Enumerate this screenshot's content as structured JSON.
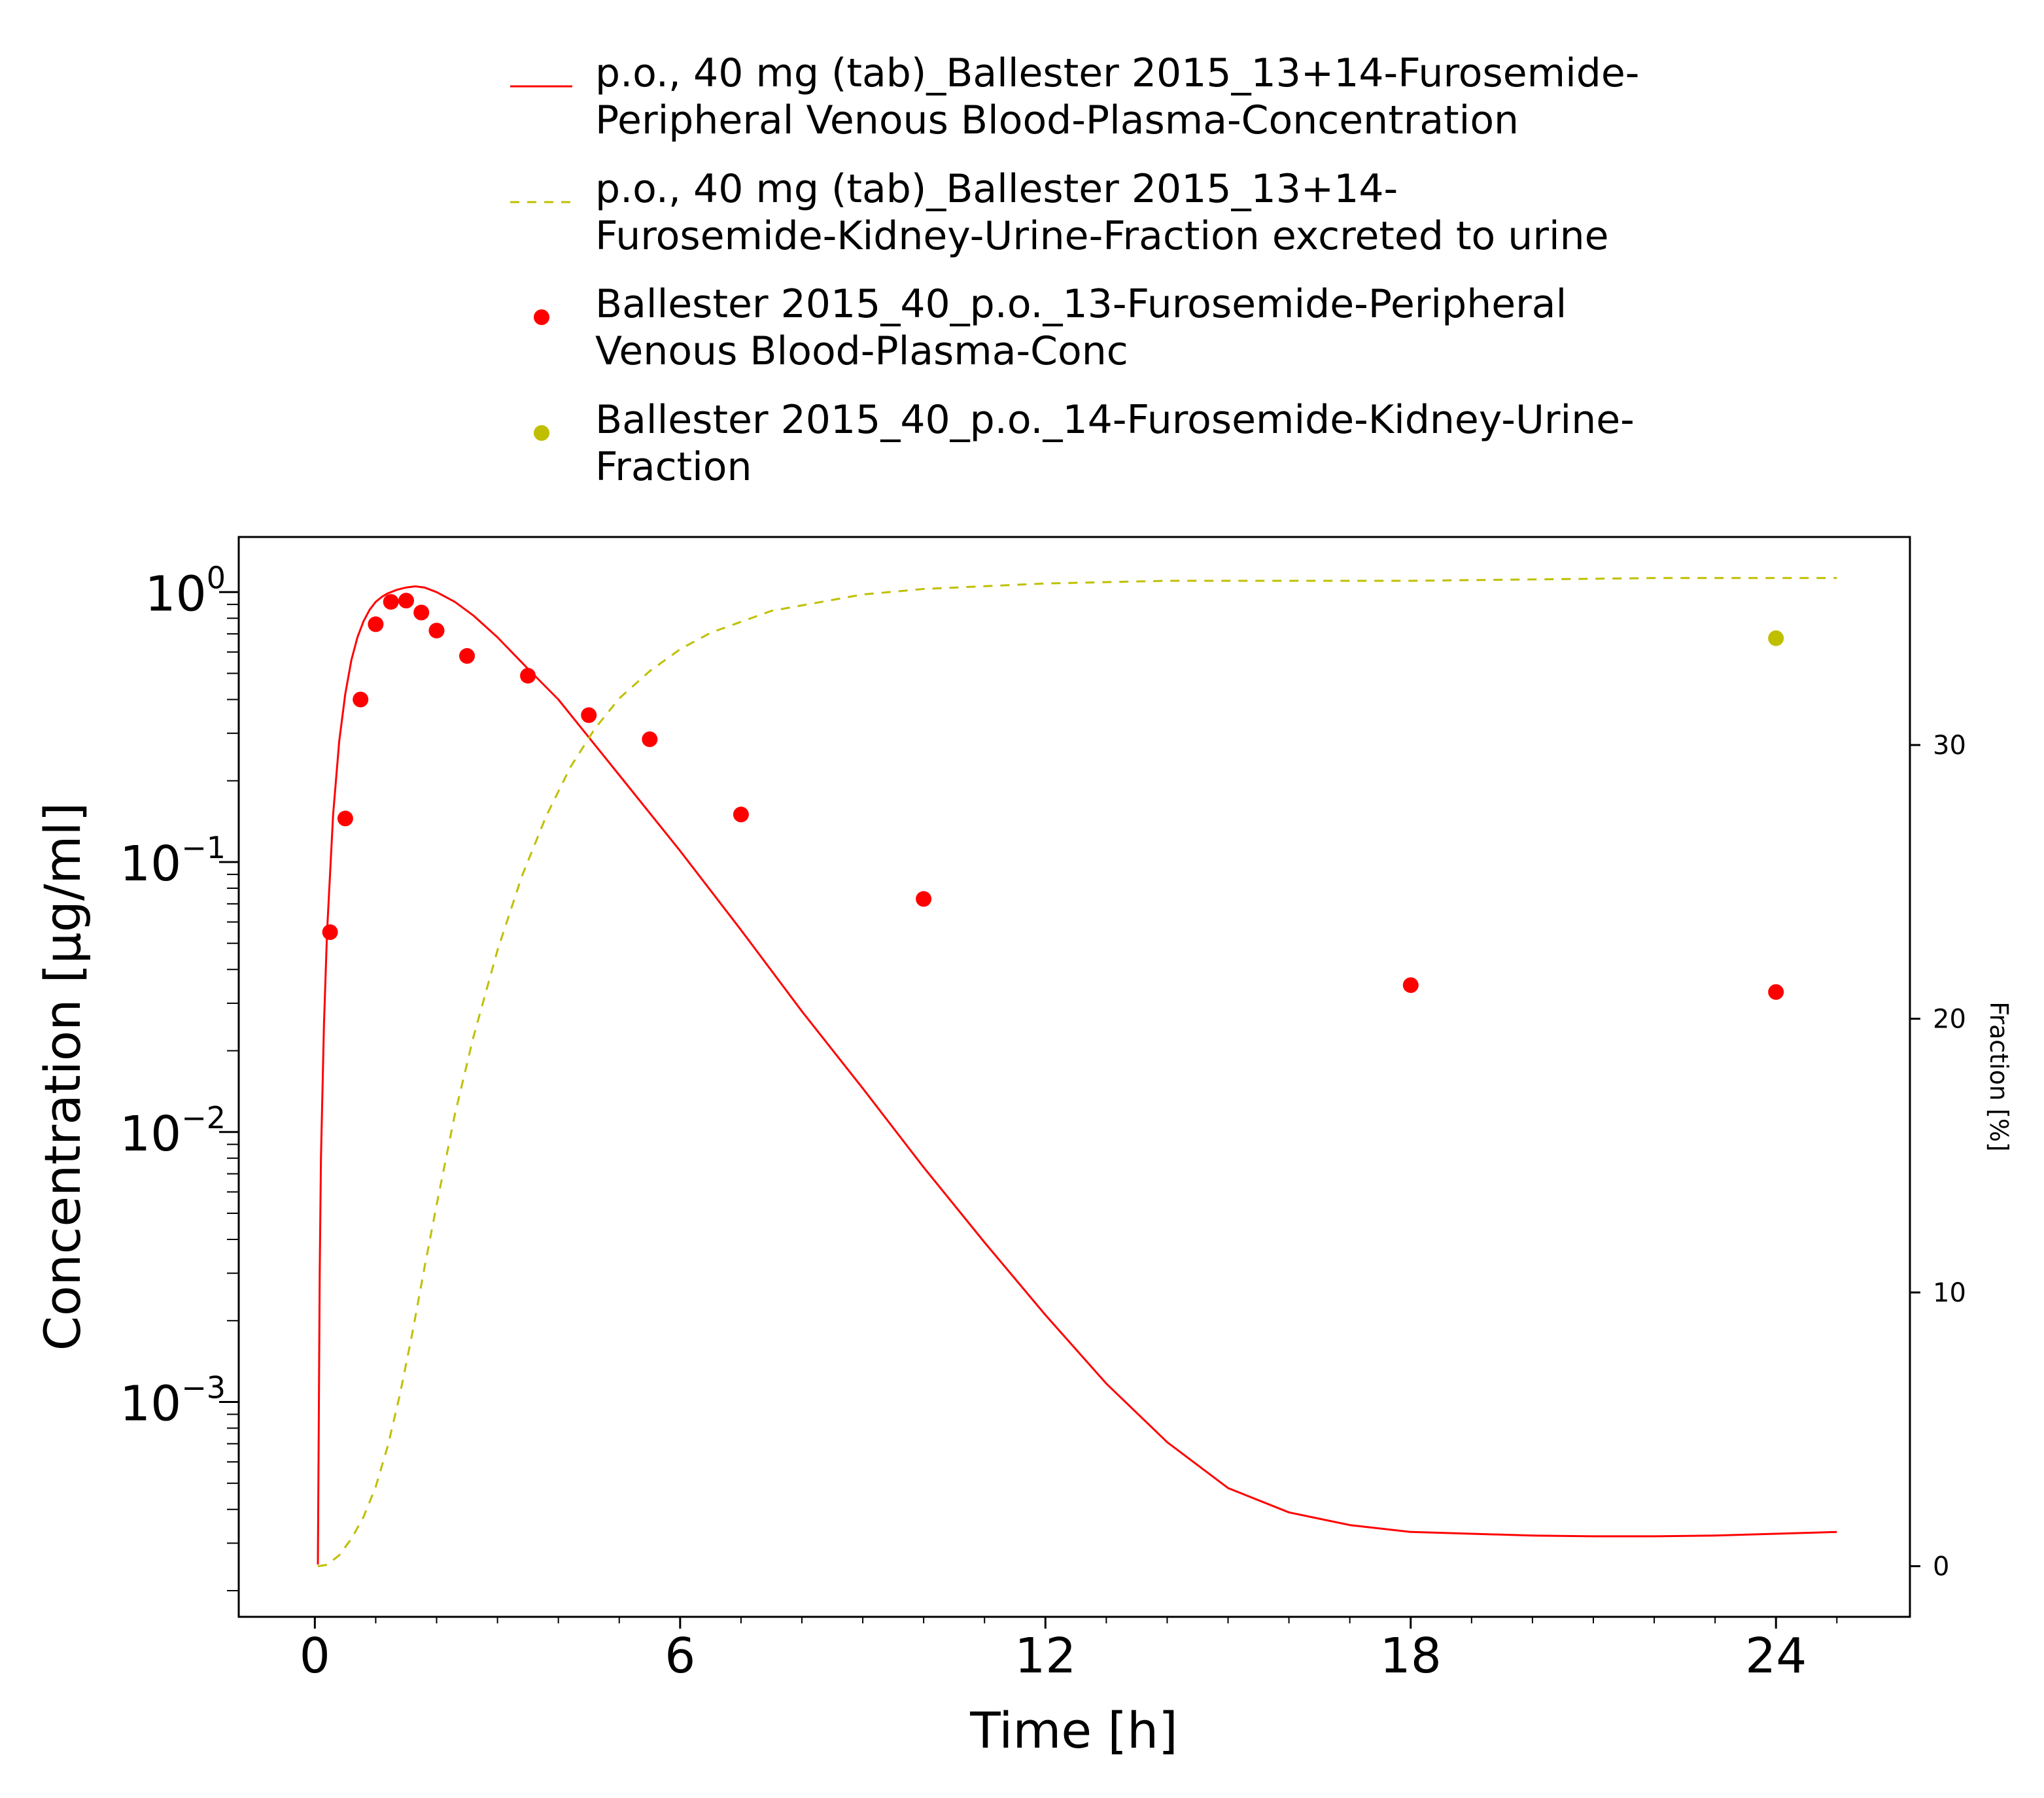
{
  "colors": {
    "red": "#ff0000",
    "olive": "#bfbf00",
    "axis": "#000000"
  },
  "legend": [
    {
      "marker": "line",
      "color": "red",
      "lines": [
        "p.o., 40 mg (tab)_Ballester 2015_13+14-Furosemide-",
        "Peripheral Venous Blood-Plasma-Concentration"
      ]
    },
    {
      "marker": "dashed-line",
      "color": "olive",
      "lines": [
        "p.o., 40 mg (tab)_Ballester 2015_13+14-",
        "Furosemide-Kidney-Urine-Fraction excreted to urine"
      ]
    },
    {
      "marker": "dot",
      "color": "red",
      "lines": [
        "Ballester 2015_40_p.o._13-Furosemide-Peripheral",
        "Venous Blood-Plasma-Conc"
      ]
    },
    {
      "marker": "dot",
      "color": "olive",
      "lines": [
        "Ballester 2015_40_p.o._14-Furosemide-Kidney-Urine-",
        "Fraction"
      ]
    }
  ],
  "chart_data": {
    "type": "line",
    "xlabel": "Time [h]",
    "ylabel": "Concentration [µg/ml]",
    "y2label": "Fraction [%]",
    "xlim": [
      -1.25,
      26.2
    ],
    "ylim": [
      0.00016,
      1.6
    ],
    "yscale": "log",
    "y2lim": [
      -1.85,
      37.6
    ],
    "xticks": [
      0,
      6,
      12,
      18,
      24
    ],
    "xtick_labels": [
      "0",
      "6",
      "12",
      "18",
      "24"
    ],
    "yticks": [
      1,
      0.1,
      0.01,
      0.001
    ],
    "ytick_labels": [
      {
        "base": "10",
        "exp": "0"
      },
      {
        "base": "10",
        "exp": "−1"
      },
      {
        "base": "10",
        "exp": "−2"
      },
      {
        "base": "10",
        "exp": "−3"
      }
    ],
    "y2ticks": [
      0,
      10,
      20,
      30
    ],
    "y2tick_labels": [
      "0",
      "10",
      "20",
      "30"
    ],
    "grid": false,
    "legend_position": "top",
    "series": [
      {
        "kind": "line",
        "axis": "left",
        "color": "red",
        "x": [
          0.05,
          0.08,
          0.1,
          0.15,
          0.2,
          0.3,
          0.4,
          0.5,
          0.6,
          0.7,
          0.8,
          0.9,
          1.0,
          1.1,
          1.2,
          1.35,
          1.5,
          1.65,
          1.8,
          2.0,
          2.3,
          2.6,
          3.0,
          3.5,
          4.0,
          5.0,
          6.0,
          7.0,
          8.0,
          9.0,
          10.0,
          11.0,
          12.0,
          13.0,
          14.0,
          15.0,
          16.0,
          17.0,
          18.0,
          19.0,
          20.0,
          21.0,
          22.0,
          23.0,
          24.0,
          25.0
        ],
        "y": [
          0.00025,
          0.003,
          0.008,
          0.025,
          0.055,
          0.15,
          0.28,
          0.42,
          0.56,
          0.68,
          0.78,
          0.86,
          0.92,
          0.96,
          0.99,
          1.02,
          1.04,
          1.05,
          1.04,
          1.0,
          0.92,
          0.82,
          0.68,
          0.52,
          0.4,
          0.21,
          0.11,
          0.056,
          0.028,
          0.0145,
          0.0074,
          0.0039,
          0.0021,
          0.00117,
          0.00071,
          0.00048,
          0.00039,
          0.00035,
          0.00033,
          0.000325,
          0.00032,
          0.000318,
          0.000318,
          0.00032,
          0.000325,
          0.00033
        ]
      },
      {
        "kind": "line",
        "dashed": true,
        "axis": "right",
        "color": "olive",
        "x": [
          0.05,
          0.2,
          0.4,
          0.6,
          0.8,
          1.0,
          1.2,
          1.4,
          1.6,
          1.8,
          2.0,
          2.3,
          2.6,
          3.0,
          3.4,
          3.8,
          4.2,
          4.6,
          5.0,
          5.5,
          6.0,
          6.5,
          7.0,
          7.5,
          8.0,
          9.0,
          10.0,
          11.0,
          12.0,
          14.0,
          16.0,
          18.0,
          20.0,
          22.0,
          25.0
        ],
        "y": [
          0,
          0.05,
          0.4,
          1.0,
          1.8,
          2.9,
          4.4,
          6.3,
          8.5,
          10.9,
          13.2,
          16.5,
          19.3,
          22.5,
          25.2,
          27.4,
          29.2,
          30.6,
          31.7,
          32.7,
          33.5,
          34.1,
          34.5,
          34.9,
          35.1,
          35.5,
          35.7,
          35.8,
          35.9,
          36.0,
          36.0,
          36.0,
          36.05,
          36.1,
          36.1
        ]
      },
      {
        "kind": "scatter",
        "axis": "left",
        "color": "red",
        "x": [
          0.25,
          0.5,
          0.75,
          1.0,
          1.25,
          1.5,
          1.75,
          2.0,
          2.5,
          3.5,
          4.5,
          5.5,
          7.0,
          10.0,
          18.0,
          24.0
        ],
        "y": [
          0.055,
          0.145,
          0.4,
          0.76,
          0.92,
          0.93,
          0.84,
          0.72,
          0.58,
          0.49,
          0.35,
          0.285,
          0.15,
          0.073,
          0.035,
          0.033
        ]
      },
      {
        "kind": "scatter",
        "axis": "right",
        "color": "olive",
        "x": [
          24.0
        ],
        "y": [
          33.9
        ]
      }
    ]
  }
}
